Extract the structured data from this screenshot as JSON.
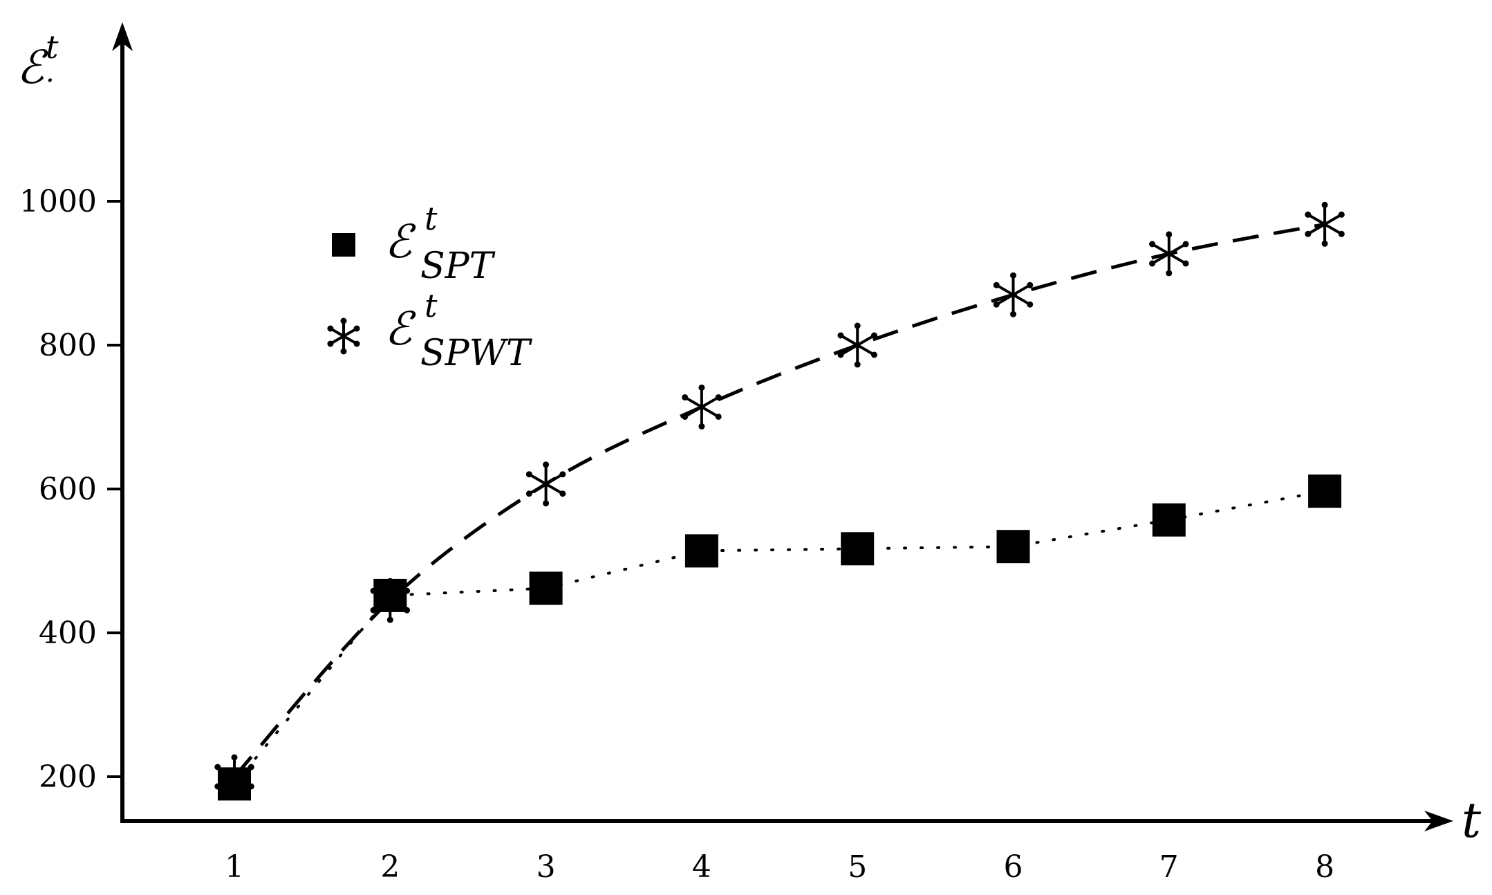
{
  "chart_data": {
    "type": "line",
    "x": [
      1,
      2,
      3,
      4,
      5,
      6,
      7,
      8
    ],
    "ylabel": "ℰ",
    "ylabel_sup": "t",
    "ylabel_sub": ".",
    "xlabel": "t",
    "yticks": [
      200,
      400,
      600,
      800,
      1000
    ],
    "xticks": [
      1,
      2,
      3,
      4,
      5,
      6,
      7,
      8
    ],
    "xlim": [
      0.3,
      9.7
    ],
    "ylim": [
      140,
      1240
    ],
    "grid": false,
    "legend_position": "top-left",
    "series": [
      {
        "name_base": "ℰ",
        "name_sup": "t",
        "name_sub": "SPT",
        "marker": "square",
        "line_style": "dotted",
        "values": [
          190,
          452,
          462,
          514,
          517,
          520,
          557,
          597
        ]
      },
      {
        "name_base": "ℰ",
        "name_sup": "t",
        "name_sub": "SPWT",
        "marker": "asterisk",
        "line_style": "dashed",
        "values": [
          200,
          445,
          607,
          714,
          800,
          870,
          927,
          968
        ]
      }
    ]
  }
}
